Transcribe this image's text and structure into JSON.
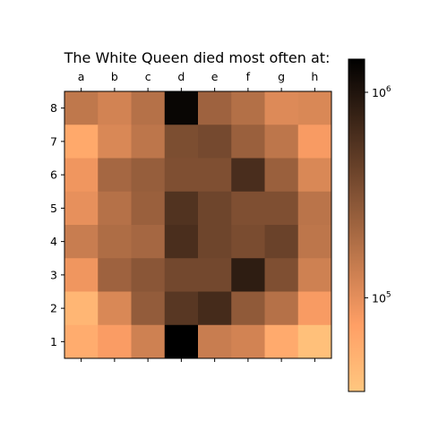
{
  "chart_data": {
    "type": "heatmap",
    "title": "The White Queen died most often at:",
    "xlabel": "",
    "ylabel": "",
    "x_categories": [
      "a",
      "b",
      "c",
      "d",
      "e",
      "f",
      "g",
      "h"
    ],
    "y_categories": [
      "8",
      "7",
      "6",
      "5",
      "4",
      "3",
      "2",
      "1"
    ],
    "values": [
      [
        155000,
        125000,
        175000,
        1300000,
        230000,
        180000,
        110000,
        115000
      ],
      [
        62000,
        115000,
        160000,
        340000,
        370000,
        240000,
        160000,
        80000
      ],
      [
        88000,
        210000,
        250000,
        330000,
        330000,
        620000,
        240000,
        115000
      ],
      [
        98000,
        175000,
        240000,
        560000,
        400000,
        330000,
        330000,
        165000
      ],
      [
        140000,
        190000,
        210000,
        610000,
        400000,
        350000,
        420000,
        160000
      ],
      [
        88000,
        230000,
        290000,
        380000,
        380000,
        850000,
        330000,
        130000
      ],
      [
        48000,
        115000,
        260000,
        520000,
        650000,
        270000,
        175000,
        80000
      ],
      [
        58000,
        78000,
        130000,
        1450000,
        140000,
        125000,
        60000,
        40000
      ]
    ],
    "colorbar": {
      "scale": "log",
      "colormap": "copper_r",
      "vmin": 35000,
      "vmax": 1450000,
      "ticks": [
        {
          "value": 100000,
          "label": "10^5",
          "base": "10",
          "exp": "5"
        },
        {
          "value": 1000000,
          "label": "10^6",
          "base": "10",
          "exp": "6"
        }
      ]
    }
  }
}
